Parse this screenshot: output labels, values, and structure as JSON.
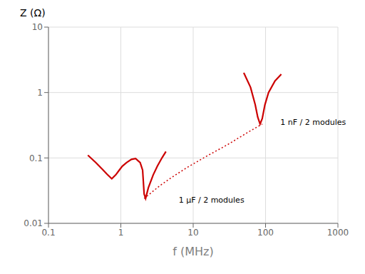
{
  "chart_data": {
    "type": "line",
    "log": true,
    "grid": true,
    "xlabel": "f  (MHz)",
    "ylabel": "Z (Ω)",
    "xlim": [
      0.1,
      1000
    ],
    "ylim": [
      0.01,
      10
    ],
    "xticks": [
      0.1,
      1,
      10,
      100,
      1000
    ],
    "yticks": [
      0.01,
      0.1,
      1,
      10
    ],
    "series": [
      {
        "color": "#cc0000",
        "line_style": "solid",
        "x": [
          0.35,
          0.45,
          0.55,
          0.65,
          0.75,
          0.85,
          0.95,
          1.05,
          1.2,
          1.4,
          1.6,
          1.85,
          2.0,
          2.1,
          2.2,
          2.4,
          2.8,
          3.2,
          3.7,
          4.2
        ],
        "values": [
          0.11,
          0.085,
          0.068,
          0.056,
          0.048,
          0.055,
          0.065,
          0.075,
          0.085,
          0.095,
          0.098,
          0.085,
          0.065,
          0.028,
          0.024,
          0.035,
          0.055,
          0.075,
          0.1,
          0.125
        ]
      },
      {
        "color": "#cc0000",
        "line_style": "solid",
        "x": [
          50,
          62,
          72,
          78,
          84,
          90,
          98,
          110,
          135,
          165
        ],
        "values": [
          2.0,
          1.2,
          0.65,
          0.42,
          0.33,
          0.4,
          0.65,
          1.0,
          1.5,
          1.9
        ]
      },
      {
        "color": "#cc0000",
        "line_style": "dotted",
        "x": [
          2.1,
          3.5,
          5.0,
          8.0,
          15.0,
          30.0,
          60.0,
          90.0
        ],
        "values": [
          0.024,
          0.038,
          0.05,
          0.07,
          0.105,
          0.16,
          0.255,
          0.33
        ]
      }
    ],
    "annotations": [
      {
        "text": "1 μF / 2 modules",
        "x": 5.5,
        "y": 0.023
      },
      {
        "text": "1 nF / 2 modules",
        "x": 140,
        "y": 0.35
      }
    ]
  }
}
